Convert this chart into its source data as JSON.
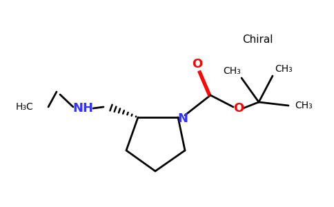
{
  "background_color": "#ffffff",
  "bond_color": "#000000",
  "nitrogen_color": "#3333ff",
  "oxygen_color": "#ff0000",
  "figsize": [
    4.84,
    3.0
  ],
  "dpi": 100,
  "chiral_label": "Chiral",
  "nh_label": "NH",
  "n_label": "N",
  "o_label_dbl": "O",
  "o_label_single": "O",
  "h3c_label": "H₃C",
  "ch3_1": "CH₃",
  "ch3_2": "CH₃",
  "ch3_3": "CH₃",
  "ch3_eth": "CH₃",
  "lw": 2.0,
  "fontsize_main": 12,
  "fontsize_chiral": 11
}
